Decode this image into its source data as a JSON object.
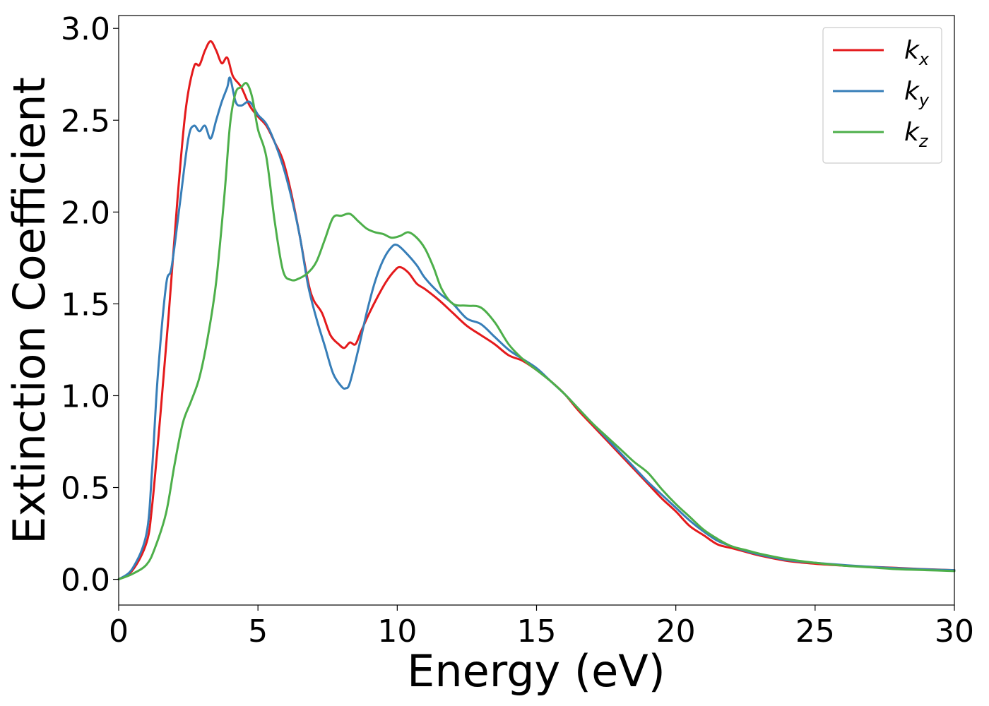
{
  "chart_data": {
    "type": "line",
    "title": "",
    "xlabel": "Energy (eV)",
    "ylabel": "Extinction Coefficient",
    "xlim": [
      0,
      30
    ],
    "ylim": [
      -0.14,
      3.07
    ],
    "xticks": [
      0,
      5,
      10,
      15,
      20,
      25,
      30
    ],
    "xtick_labels": [
      "0",
      "5",
      "10",
      "15",
      "20",
      "25",
      "30"
    ],
    "yticks": [
      0.0,
      0.5,
      1.0,
      1.5,
      2.0,
      2.5,
      3.0
    ],
    "ytick_labels": [
      "0.0",
      "0.5",
      "1.0",
      "1.5",
      "2.0",
      "2.5",
      "3.0"
    ],
    "grid": false,
    "legend": "top-right",
    "series": [
      {
        "name": "kx",
        "label_base": "k",
        "label_sub": "x",
        "color": "#e41a1c",
        "x": [
          0,
          0.5,
          1.0,
          1.2,
          1.5,
          1.8,
          2.1,
          2.4,
          2.7,
          2.9,
          3.1,
          3.3,
          3.5,
          3.7,
          3.9,
          4.1,
          4.4,
          4.7,
          5.0,
          5.3,
          5.6,
          5.9,
          6.2,
          6.5,
          6.8,
          7.0,
          7.3,
          7.6,
          7.9,
          8.1,
          8.3,
          8.5,
          8.7,
          9.0,
          9.3,
          9.6,
          9.9,
          10.1,
          10.4,
          10.7,
          11.0,
          11.5,
          12.0,
          12.5,
          13.0,
          13.5,
          14.0,
          14.5,
          15.0,
          15.5,
          16.0,
          16.5,
          17.0,
          17.5,
          18.0,
          18.5,
          19.0,
          19.5,
          20.0,
          20.5,
          21.0,
          21.5,
          22.0,
          22.5,
          23.0,
          24.0,
          25.0,
          26.0,
          27.0,
          28.0,
          29.0,
          30.0
        ],
        "values": [
          0.0,
          0.05,
          0.2,
          0.4,
          0.9,
          1.45,
          2.05,
          2.55,
          2.79,
          2.8,
          2.88,
          2.93,
          2.88,
          2.81,
          2.84,
          2.74,
          2.68,
          2.58,
          2.52,
          2.47,
          2.38,
          2.28,
          2.1,
          1.87,
          1.62,
          1.52,
          1.45,
          1.33,
          1.28,
          1.26,
          1.29,
          1.28,
          1.35,
          1.45,
          1.54,
          1.62,
          1.68,
          1.7,
          1.67,
          1.61,
          1.58,
          1.52,
          1.45,
          1.38,
          1.33,
          1.28,
          1.22,
          1.19,
          1.14,
          1.08,
          1.01,
          0.92,
          0.84,
          0.76,
          0.68,
          0.6,
          0.52,
          0.44,
          0.37,
          0.29,
          0.24,
          0.19,
          0.17,
          0.15,
          0.13,
          0.1,
          0.085,
          0.075,
          0.068,
          0.062,
          0.055,
          0.05
        ]
      },
      {
        "name": "ky",
        "label_base": "k",
        "label_sub": "y",
        "color": "#377eb8",
        "x": [
          0,
          0.5,
          1.0,
          1.2,
          1.4,
          1.7,
          1.9,
          2.2,
          2.5,
          2.7,
          2.9,
          3.1,
          3.3,
          3.5,
          3.7,
          3.9,
          4.0,
          4.2,
          4.4,
          4.7,
          5.0,
          5.3,
          5.6,
          5.9,
          6.2,
          6.5,
          6.8,
          7.1,
          7.4,
          7.7,
          8.0,
          8.15,
          8.3,
          8.6,
          8.9,
          9.2,
          9.5,
          9.8,
          10.0,
          10.3,
          10.7,
          11.0,
          11.5,
          12.0,
          12.5,
          13.0,
          13.5,
          14.0,
          14.5,
          15.0,
          15.5,
          16.0,
          16.5,
          17.0,
          17.5,
          18.0,
          18.5,
          19.0,
          19.5,
          20.0,
          20.5,
          21.0,
          21.5,
          22.0,
          22.5,
          23.0,
          24.0,
          25.0,
          26.0,
          27.0,
          28.0,
          29.0,
          30.0
        ],
        "values": [
          0.0,
          0.06,
          0.25,
          0.6,
          1.1,
          1.6,
          1.7,
          2.05,
          2.4,
          2.47,
          2.44,
          2.47,
          2.4,
          2.5,
          2.6,
          2.68,
          2.73,
          2.6,
          2.58,
          2.6,
          2.53,
          2.48,
          2.38,
          2.25,
          2.08,
          1.87,
          1.6,
          1.42,
          1.27,
          1.12,
          1.05,
          1.04,
          1.07,
          1.25,
          1.45,
          1.62,
          1.74,
          1.81,
          1.82,
          1.78,
          1.71,
          1.64,
          1.56,
          1.5,
          1.42,
          1.39,
          1.32,
          1.25,
          1.2,
          1.15,
          1.08,
          1.01,
          0.93,
          0.85,
          0.77,
          0.69,
          0.61,
          0.53,
          0.46,
          0.39,
          0.32,
          0.26,
          0.21,
          0.18,
          0.155,
          0.135,
          0.105,
          0.09,
          0.078,
          0.068,
          0.06,
          0.054,
          0.05
        ]
      },
      {
        "name": "kz",
        "label_base": "k",
        "label_sub": "z",
        "color": "#4daf4a",
        "x": [
          0,
          0.5,
          1.0,
          1.3,
          1.7,
          2.0,
          2.3,
          2.6,
          2.9,
          3.2,
          3.5,
          3.8,
          4.0,
          4.2,
          4.4,
          4.6,
          4.8,
          5.0,
          5.3,
          5.6,
          5.9,
          6.2,
          6.5,
          6.8,
          7.1,
          7.4,
          7.7,
          8.0,
          8.3,
          8.6,
          8.9,
          9.2,
          9.5,
          9.8,
          10.1,
          10.4,
          10.7,
          11.0,
          11.3,
          11.6,
          12.0,
          12.5,
          13.0,
          13.5,
          14.0,
          14.5,
          15.0,
          15.5,
          16.0,
          16.5,
          17.0,
          17.5,
          18.0,
          18.5,
          19.0,
          19.5,
          20.0,
          20.5,
          21.0,
          21.5,
          22.0,
          22.5,
          23.0,
          24.0,
          25.0,
          26.0,
          27.0,
          28.0,
          29.0,
          30.0
        ],
        "values": [
          0.0,
          0.03,
          0.08,
          0.17,
          0.36,
          0.62,
          0.85,
          0.97,
          1.1,
          1.32,
          1.62,
          2.1,
          2.48,
          2.65,
          2.68,
          2.7,
          2.62,
          2.45,
          2.3,
          1.95,
          1.68,
          1.63,
          1.64,
          1.67,
          1.73,
          1.85,
          1.97,
          1.98,
          1.99,
          1.95,
          1.91,
          1.89,
          1.88,
          1.86,
          1.87,
          1.89,
          1.86,
          1.8,
          1.7,
          1.58,
          1.5,
          1.49,
          1.48,
          1.4,
          1.28,
          1.2,
          1.14,
          1.08,
          1.01,
          0.93,
          0.85,
          0.78,
          0.71,
          0.64,
          0.58,
          0.49,
          0.41,
          0.34,
          0.27,
          0.22,
          0.18,
          0.16,
          0.14,
          0.11,
          0.09,
          0.075,
          0.065,
          0.055,
          0.05,
          0.045
        ]
      }
    ]
  }
}
